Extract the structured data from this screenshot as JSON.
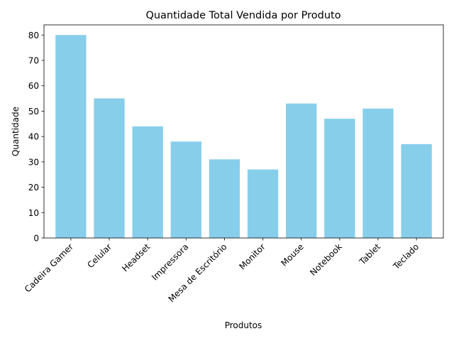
{
  "chart_data": {
    "type": "bar",
    "title": "Quantidade Total Vendida por Produto",
    "xlabel": "Produtos",
    "ylabel": "Quantidade",
    "categories": [
      "Cadeira Gamer",
      "Celular",
      "Headset",
      "Impressora",
      "Mesa de Escritório",
      "Monitor",
      "Mouse",
      "Notebook",
      "Tablet",
      "Teclado"
    ],
    "values": [
      80,
      55,
      44,
      38,
      31,
      27,
      53,
      47,
      51,
      37
    ],
    "ylim": [
      0,
      84
    ],
    "yticks": [
      0,
      10,
      20,
      30,
      40,
      50,
      60,
      70,
      80
    ],
    "bar_color": "#87CEEB",
    "grid": false,
    "legend": "none"
  }
}
